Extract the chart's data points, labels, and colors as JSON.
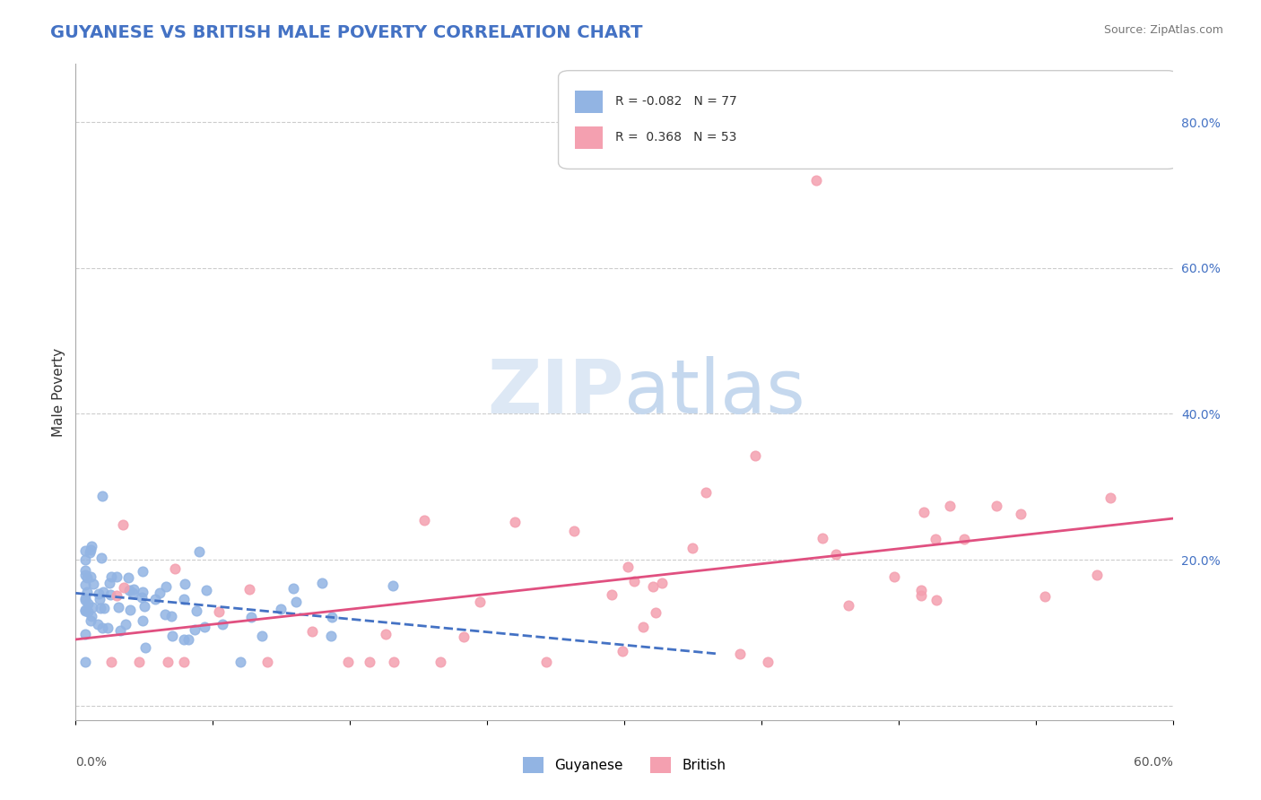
{
  "title": "GUYANESE VS BRITISH MALE POVERTY CORRELATION CHART",
  "source": "Source: ZipAtlas.com",
  "ylabel": "Male Poverty",
  "xlim": [
    0.0,
    0.6
  ],
  "ylim": [
    -0.02,
    0.88
  ],
  "color_guyanese": "#92b4e3",
  "color_british": "#f4a0b0",
  "line_color_guyanese": "#4472c4",
  "line_color_british": "#e05080",
  "background_color": "#ffffff",
  "grid_color": "#cccccc"
}
